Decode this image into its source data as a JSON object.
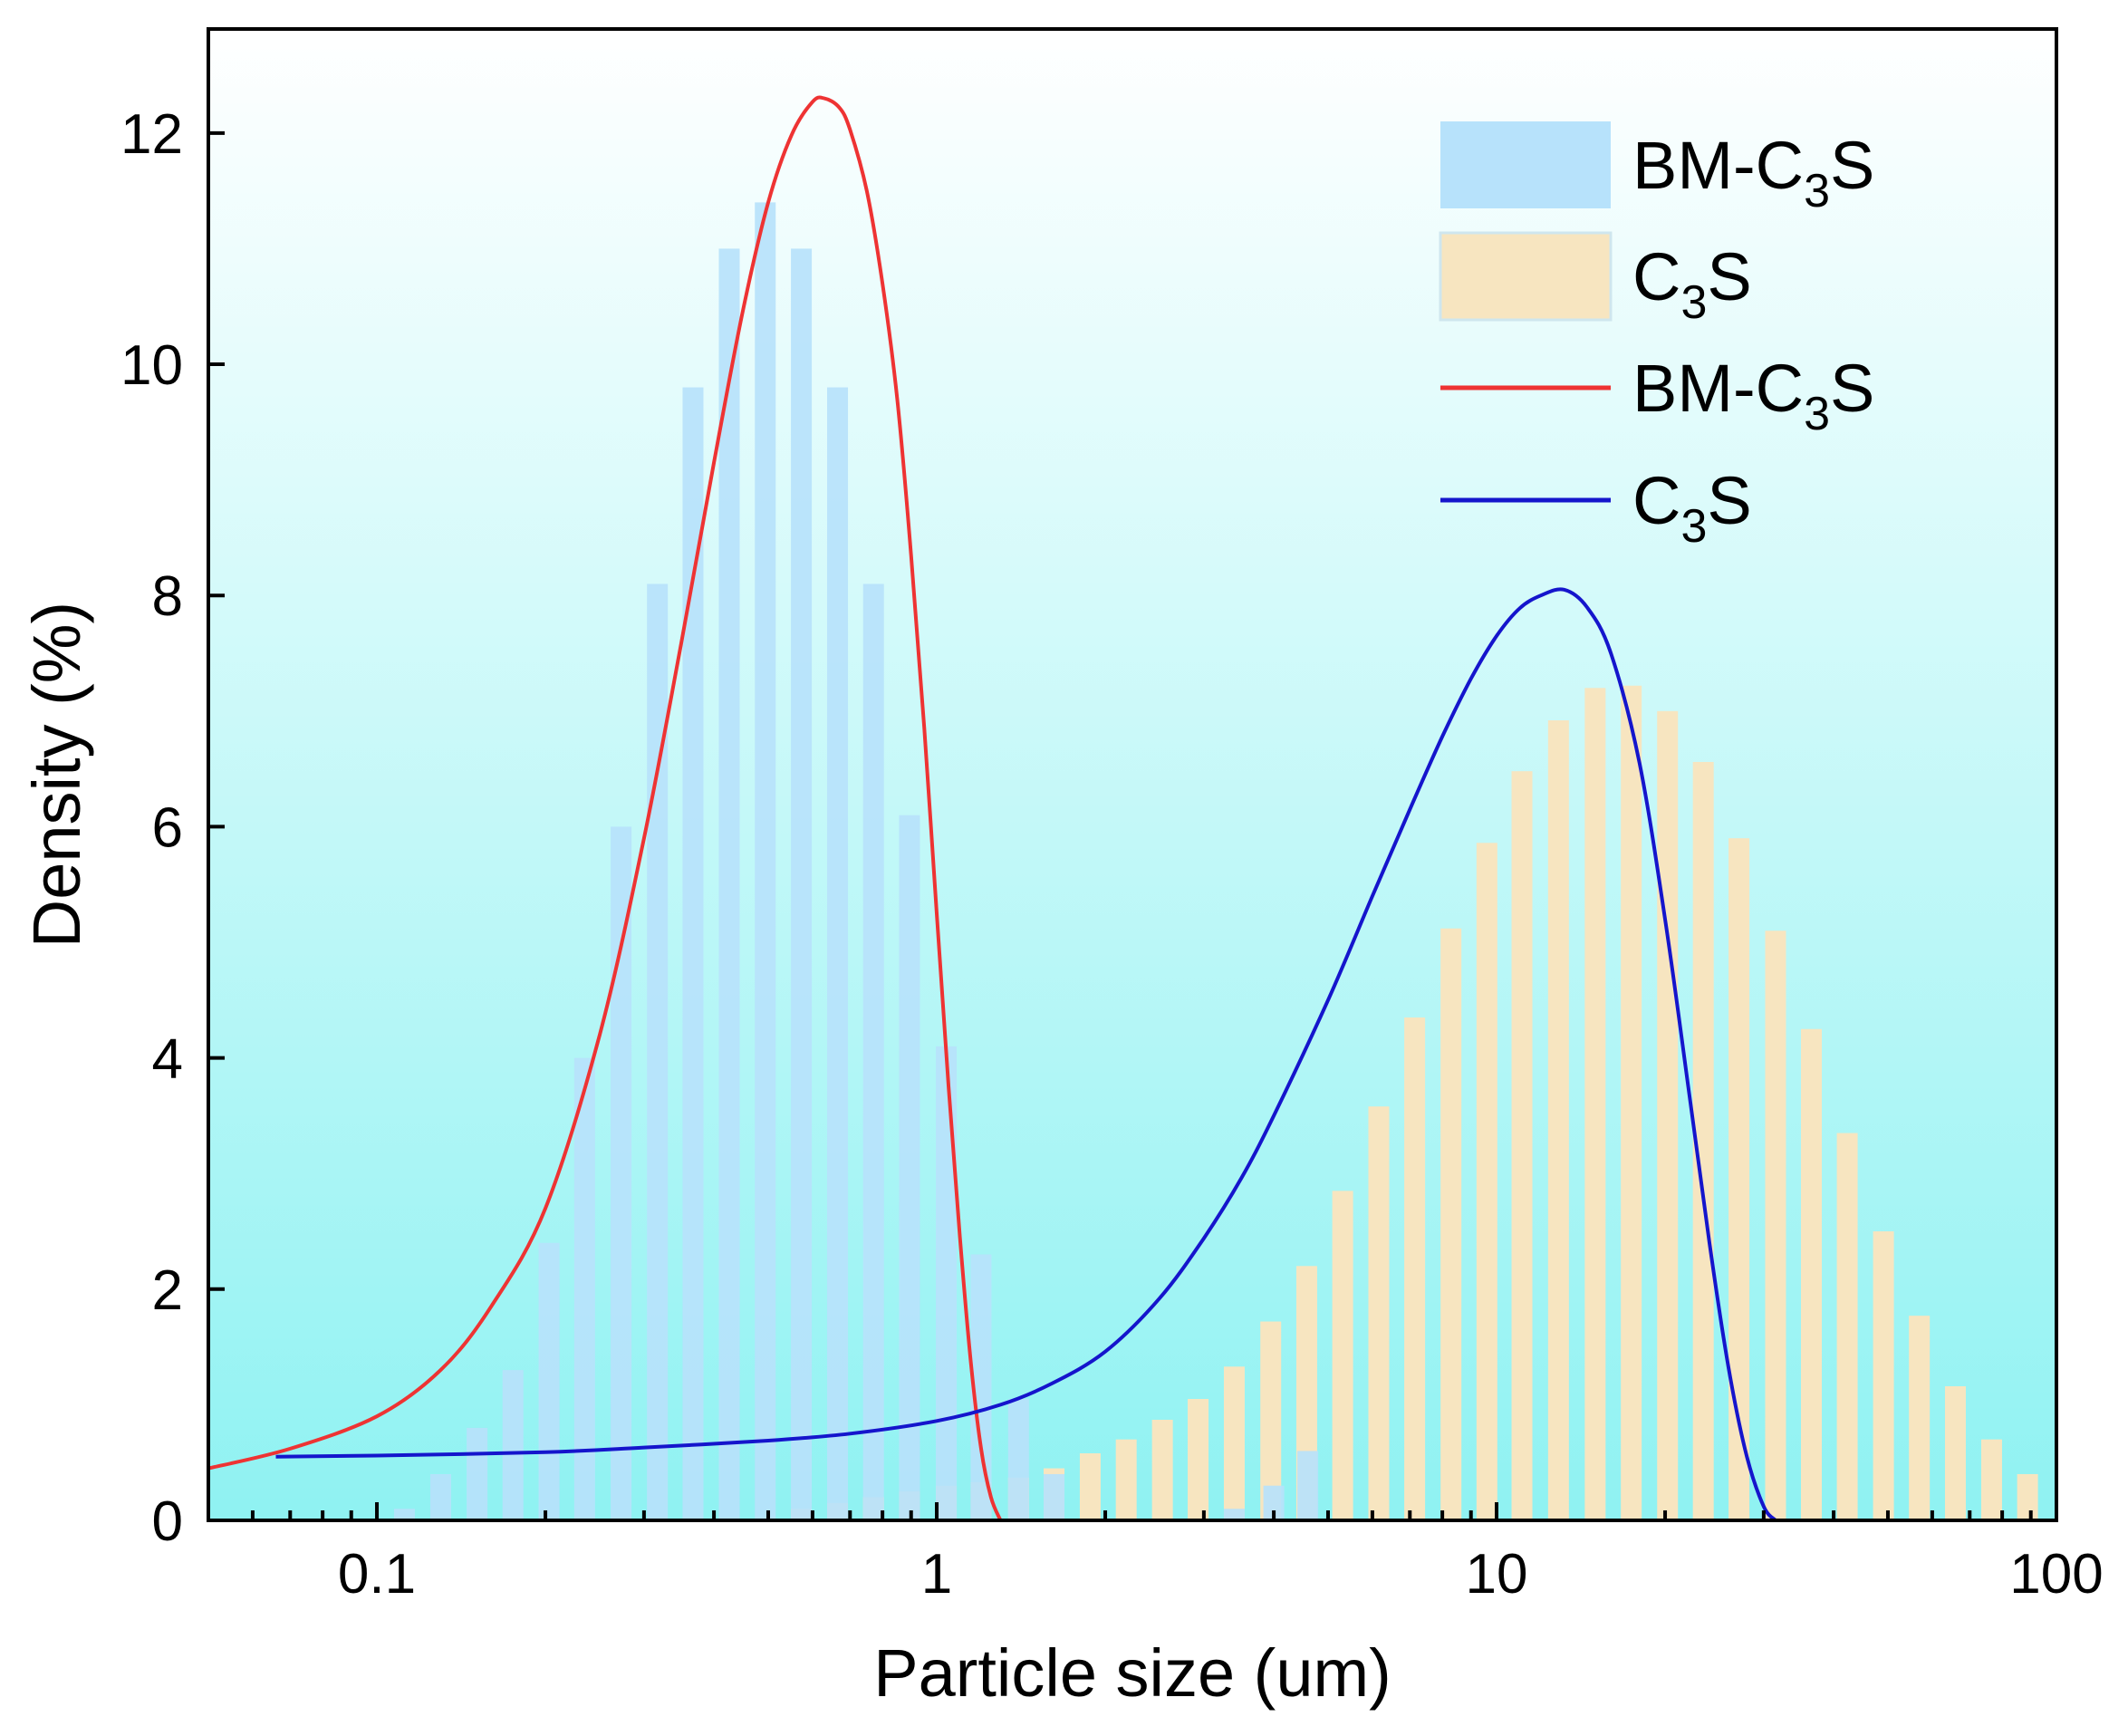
{
  "chart_data": {
    "type": "bar",
    "title": "",
    "xlabel": "Particle size (um)",
    "ylabel": "Density (%)",
    "x_scale": "log",
    "xlim": [
      0.05,
      100
    ],
    "ylim": [
      0,
      12.9
    ],
    "x_ticks": [
      0.1,
      1,
      10,
      100
    ],
    "x_tick_labels": [
      "0.1",
      "1",
      "10",
      "100"
    ],
    "y_ticks": [
      0,
      2,
      4,
      6,
      8,
      10,
      12
    ],
    "y_tick_labels": [
      "0",
      "2",
      "4",
      "6",
      "8",
      "10",
      "12"
    ],
    "grid": false,
    "legend_position": "top-right",
    "legend": [
      {
        "kind": "bar",
        "main": "BM-C",
        "sub": "3",
        "tail": "S",
        "color": "#b7e2fb"
      },
      {
        "kind": "bar",
        "main": "C",
        "sub": "3",
        "tail": "S",
        "color": "#f7e5c0"
      },
      {
        "kind": "line",
        "main": "BM-C",
        "sub": "3",
        "tail": "S",
        "color": "#ee3333"
      },
      {
        "kind": "line",
        "main": "C",
        "sub": "3",
        "tail": "S",
        "color": "#1515cc"
      }
    ],
    "series": [
      {
        "name": "BM-C3S",
        "kind": "histogram",
        "color": "#b7e2fb",
        "x": [
          0.112,
          0.13,
          0.151,
          0.175,
          0.203,
          0.235,
          0.273,
          0.317,
          0.367,
          0.426,
          0.494,
          0.573,
          0.665,
          0.771,
          0.894,
          1.04,
          1.2,
          1.4,
          1.62,
          3.4,
          4.0,
          4.6
        ],
        "values": [
          0.1,
          0.4,
          0.8,
          1.3,
          2.4,
          4.0,
          6.0,
          8.1,
          9.8,
          11.0,
          11.4,
          11.0,
          9.8,
          8.1,
          6.1,
          4.1,
          2.3,
          1.05,
          0.4,
          0.1,
          0.3,
          0.6
        ]
      },
      {
        "name": "C3S",
        "kind": "histogram",
        "color": "#f7e5c0",
        "x": [
          0.573,
          0.665,
          0.771,
          0.894,
          1.04,
          1.2,
          1.4,
          1.62,
          1.88,
          2.18,
          2.53,
          2.93,
          3.4,
          3.95,
          4.58,
          5.31,
          6.16,
          7.14,
          8.29,
          9.61,
          11.1,
          12.9,
          15.0,
          17.4,
          20.2,
          23.4,
          27.1,
          31.5,
          36.5,
          42.3,
          49.1,
          56.9,
          66.0,
          76.6
        ],
        "values": [
          0.1,
          0.15,
          0.2,
          0.25,
          0.3,
          0.33,
          0.37,
          0.45,
          0.58,
          0.7,
          0.87,
          1.05,
          1.33,
          1.72,
          2.2,
          2.85,
          3.58,
          4.35,
          5.12,
          5.86,
          6.48,
          6.92,
          7.2,
          7.22,
          7.0,
          6.56,
          5.9,
          5.1,
          4.25,
          3.35,
          2.5,
          1.77,
          1.16,
          0.7
        ],
        "extra_x": [
          88.8
        ],
        "extra_values": [
          0.4
        ]
      },
      {
        "name": "BM-C3S",
        "kind": "line",
        "color": "#ee3333",
        "peak_x": 0.63,
        "peak_y": 12.3,
        "x": [
          0.05,
          0.07,
          0.1,
          0.13,
          0.16,
          0.2,
          0.25,
          0.3,
          0.35,
          0.4,
          0.45,
          0.5,
          0.55,
          0.6,
          0.63,
          0.67,
          0.7,
          0.75,
          0.8,
          0.85,
          0.9,
          0.95,
          1.0,
          1.05,
          1.1,
          1.15,
          1.2,
          1.25,
          1.3
        ],
        "values": [
          0.45,
          0.62,
          0.9,
          1.3,
          1.85,
          2.7,
          4.2,
          5.9,
          7.6,
          9.15,
          10.45,
          11.4,
          11.98,
          12.27,
          12.3,
          12.22,
          12.03,
          11.5,
          10.7,
          9.7,
          8.35,
          6.85,
          5.25,
          3.75,
          2.45,
          1.38,
          0.62,
          0.2,
          0.0
        ]
      },
      {
        "name": "C3S",
        "kind": "line",
        "color": "#1515cc",
        "peak_x": 13.2,
        "peak_y": 8.05,
        "x": [
          0.066,
          0.1,
          0.2,
          0.3,
          0.5,
          0.7,
          1.0,
          1.3,
          1.6,
          2.0,
          2.5,
          3.0,
          3.5,
          4.0,
          5.0,
          6.0,
          7.0,
          8.0,
          9.0,
          10.0,
          11.0,
          12.0,
          13.2,
          14.5,
          16.0,
          18.0,
          20.0,
          22.0,
          24.0,
          26.0,
          28.0,
          30.0,
          31.5
        ],
        "values": [
          0.55,
          0.56,
          0.59,
          0.63,
          0.69,
          0.75,
          0.86,
          1.0,
          1.18,
          1.46,
          1.92,
          2.44,
          2.96,
          3.5,
          4.5,
          5.4,
          6.15,
          6.78,
          7.28,
          7.65,
          7.89,
          8.0,
          8.05,
          7.9,
          7.5,
          6.55,
          5.2,
          3.75,
          2.4,
          1.3,
          0.55,
          0.12,
          0.0
        ]
      }
    ]
  }
}
